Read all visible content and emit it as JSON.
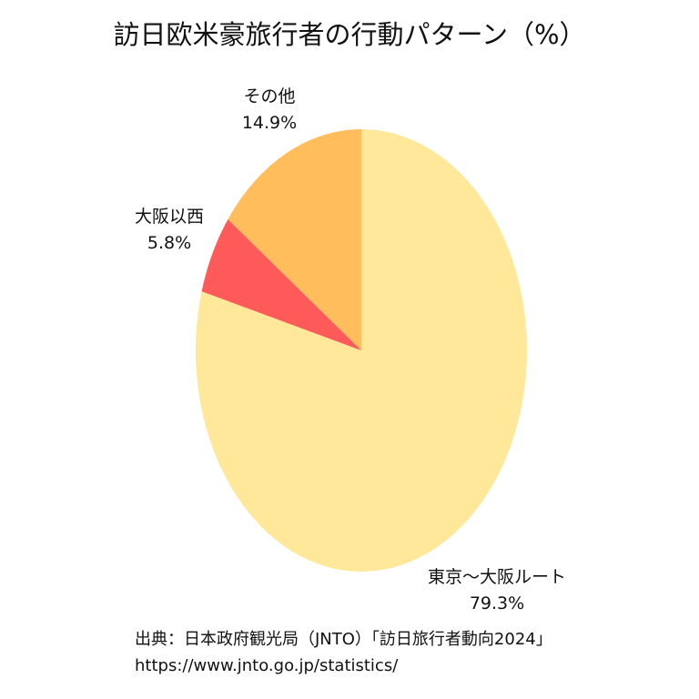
{
  "chart_data": {
    "type": "pie",
    "title": "訪日欧米豪旅行者の行動パターン（%）",
    "slices": [
      {
        "label": "東京～大阪ルート",
        "value": 79.3,
        "value_label": "79.3%",
        "color": "#FFE89A"
      },
      {
        "label": "大阪以西",
        "value": 5.8,
        "value_label": "5.8%",
        "color": "#FF5A5A"
      },
      {
        "label": "その他",
        "value": 14.9,
        "value_label": "14.9%",
        "color": "#FFBD5C"
      }
    ],
    "start": "12 o'clock",
    "direction": "clockwise",
    "legend": "none"
  },
  "source": {
    "line1": "出典：日本政府観光局（JNTO）「訪日旅行者動向2024」",
    "line2": "https://www.jnto.go.jp/statistics/"
  }
}
